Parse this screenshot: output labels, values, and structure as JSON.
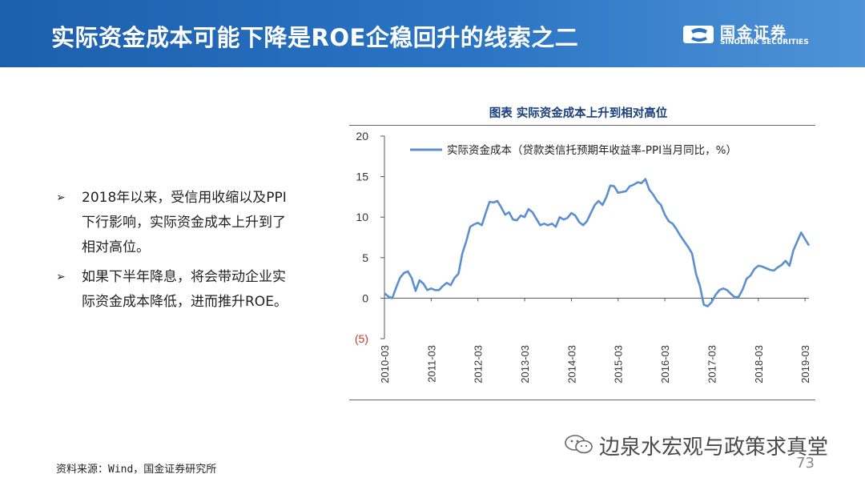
{
  "header": {
    "title": "实际资金成本可能下降是ROE企稳回升的线索之二",
    "logo_cn": "国金证券",
    "logo_en": "SINOLINK SECURITIES"
  },
  "bullets": [
    {
      "mark": "➢",
      "text": "2018年以来，受信用收缩以及PPI下行影响，实际资金成本上升到了相对高位。"
    },
    {
      "mark": "➢",
      "text": "如果下半年降息，将会带动企业实际资金成本降低，进而推升ROE。"
    }
  ],
  "chart_title": "图表  实际资金成本上升到相对高位",
  "source": "资料来源：Wind，国金证券研究所",
  "watermark": "边泉水宏观与政策求真堂",
  "page_number": "73",
  "colors": {
    "line": "#5b8fd0",
    "header": "#1c5fae",
    "negative_tick": "#c0392b"
  },
  "chart_data": {
    "type": "line",
    "title": "图表  实际资金成本上升到相对高位",
    "legend": [
      "实际资金成本（贷款类信托预期年收益率-PPI当月同比，%）"
    ],
    "legend_position": "top-left",
    "ylim": [
      -5,
      20
    ],
    "y_ticks": [
      20,
      15,
      10,
      5,
      0,
      -5
    ],
    "y_tick_labels": [
      "20",
      "15",
      "10",
      "5",
      "0",
      "(5)"
    ],
    "x_tick_labels": [
      "2010-03",
      "2011-03",
      "2012-03",
      "2013-03",
      "2014-03",
      "2015-03",
      "2016-03",
      "2017-03",
      "2018-03",
      "2019-03"
    ],
    "grid": false,
    "series": [
      {
        "name": "实际资金成本（贷款类信托预期年收益率-PPI当月同比，%）",
        "x_start": "2010-03",
        "frequency": "monthly",
        "values": [
          0.6,
          0.2,
          0.0,
          1.3,
          2.5,
          3.1,
          3.3,
          2.5,
          0.9,
          2.2,
          1.8,
          1.0,
          1.2,
          1.0,
          1.0,
          1.5,
          1.9,
          1.6,
          2.5,
          3.0,
          5.5,
          7.0,
          8.8,
          9.1,
          9.3,
          9.0,
          10.5,
          11.9,
          11.8,
          12.0,
          11.2,
          10.3,
          10.6,
          9.7,
          9.6,
          10.2,
          10.0,
          11.0,
          10.6,
          9.8,
          9.0,
          9.2,
          9.0,
          9.2,
          8.8,
          10.0,
          9.7,
          9.9,
          10.5,
          10.2,
          9.4,
          9.0,
          9.5,
          10.5,
          11.5,
          12.0,
          11.5,
          12.5,
          13.9,
          13.8,
          13.0,
          13.1,
          13.2,
          13.8,
          14.0,
          14.3,
          14.2,
          14.7,
          13.4,
          12.8,
          12.0,
          11.5,
          10.3,
          9.5,
          9.2,
          8.5,
          7.7,
          7.0,
          6.3,
          5.5,
          3.0,
          1.5,
          -0.8,
          -1.0,
          -0.5,
          0.4,
          1.0,
          1.2,
          1.0,
          0.5,
          0.1,
          0.2,
          1.1,
          2.4,
          2.8,
          3.6,
          4.0,
          3.9,
          3.7,
          3.5,
          3.4,
          3.8,
          4.1,
          4.6,
          4.0,
          5.9,
          7.0,
          8.1,
          7.3,
          6.5
        ]
      }
    ]
  }
}
